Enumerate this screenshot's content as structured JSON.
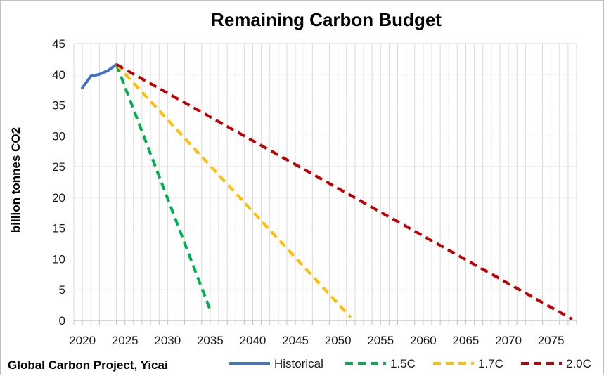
{
  "chart_data": {
    "type": "line",
    "title": "Remaining Carbon Budget",
    "xlabel": "",
    "ylabel": "billion tonnes CO2",
    "source_note": "Global Carbon Project, Yicai",
    "xlim": [
      2019,
      2078
    ],
    "ylim": [
      0,
      45
    ],
    "xticks": [
      2020,
      2025,
      2030,
      2035,
      2040,
      2045,
      2050,
      2055,
      2060,
      2065,
      2070,
      2075
    ],
    "yticks": [
      0,
      5,
      10,
      15,
      20,
      25,
      30,
      35,
      40,
      45
    ],
    "grid": true,
    "legend_position": "bottom",
    "series": [
      {
        "name": "Historical",
        "color": "#4472c4",
        "dash": "solid",
        "x": [
          2020,
          2021,
          2022,
          2023,
          2024
        ],
        "y": [
          37.8,
          39.7,
          40.0,
          40.6,
          41.6
        ]
      },
      {
        "name": "1.5C",
        "color": "#00b050",
        "dash": "dashed",
        "x": [
          2024,
          2035
        ],
        "y": [
          41.6,
          1.7
        ]
      },
      {
        "name": "1.7C",
        "color": "#ffc000",
        "dash": "dashed",
        "x": [
          2024,
          2051.5
        ],
        "y": [
          41.6,
          0.5
        ]
      },
      {
        "name": "2.0C",
        "color": "#c00000",
        "dash": "dashed",
        "x": [
          2024,
          2077.5
        ],
        "y": [
          41.6,
          0.2
        ]
      }
    ]
  }
}
